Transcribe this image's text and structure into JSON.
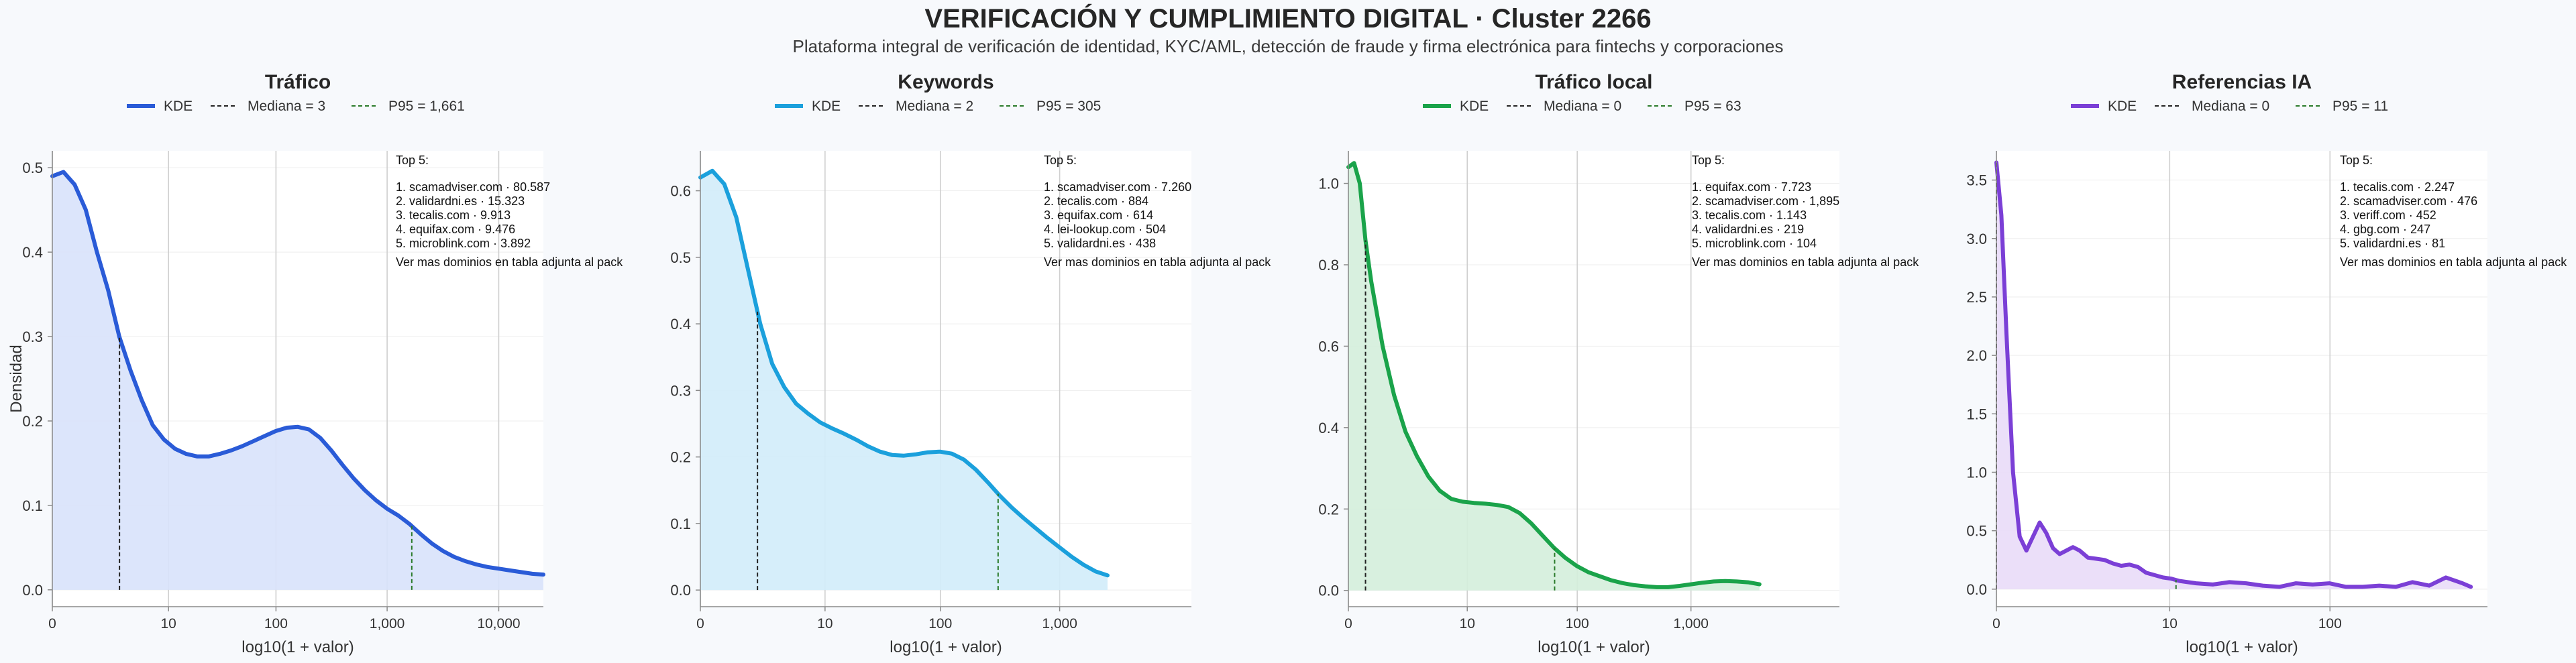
{
  "title": "VERIFICACIÓN Y CUMPLIMIENTO DIGITAL · Cluster 2266",
  "subtitle": "Plataforma integral de verificación de identidad, KYC/AML, detección de fraude y firma electrónica para fintechs y corporaciones",
  "chart_data": [
    {
      "type": "area",
      "title": "Tráfico",
      "xlabel": "log10(1 + valor)",
      "ylabel": "Densidad",
      "color": "#2a5bd7",
      "fill": "#d8e2fb",
      "xlim": [
        0,
        4.4
      ],
      "ylim": [
        -0.02,
        0.52
      ],
      "yticks": [
        0.0,
        0.1,
        0.2,
        0.3,
        0.4,
        0.5
      ],
      "ytick_labels": [
        "0.0",
        "0.1",
        "0.2",
        "0.3",
        "0.4",
        "0.5"
      ],
      "xticks": [
        0,
        1.041,
        2.004,
        3.0,
        4.0
      ],
      "xtick_labels": [
        "0",
        "10",
        "100",
        "1,000",
        "10,000"
      ],
      "legend": {
        "kde": "KDE",
        "median": "Mediana = 3",
        "p95": "P95 = 1,661"
      },
      "median_x": 0.602,
      "p95_x": 3.221,
      "top5": {
        "heading": "Top 5:",
        "items": [
          "1. scamadviser.com · 80.587",
          "2. validardni.es · 15.323",
          "3. tecalis.com · 9.913",
          "4. equifax.com · 9.476",
          "5. microblink.com · 3.892"
        ],
        "footer": "Ver mas dominios en tabla adjunta al pack"
      },
      "x": [
        0,
        0.1,
        0.2,
        0.3,
        0.4,
        0.5,
        0.6,
        0.7,
        0.8,
        0.9,
        1.0,
        1.1,
        1.2,
        1.3,
        1.4,
        1.5,
        1.6,
        1.7,
        1.8,
        1.9,
        2.0,
        2.1,
        2.2,
        2.3,
        2.4,
        2.5,
        2.6,
        2.7,
        2.8,
        2.9,
        3.0,
        3.1,
        3.2,
        3.3,
        3.4,
        3.5,
        3.6,
        3.7,
        3.8,
        3.9,
        4.0,
        4.1,
        4.2,
        4.3,
        4.4
      ],
      "y": [
        0.49,
        0.495,
        0.48,
        0.45,
        0.4,
        0.355,
        0.3,
        0.26,
        0.225,
        0.195,
        0.178,
        0.167,
        0.161,
        0.158,
        0.158,
        0.161,
        0.165,
        0.17,
        0.176,
        0.182,
        0.188,
        0.192,
        0.193,
        0.19,
        0.18,
        0.165,
        0.148,
        0.132,
        0.118,
        0.106,
        0.096,
        0.088,
        0.078,
        0.066,
        0.055,
        0.046,
        0.039,
        0.034,
        0.03,
        0.027,
        0.025,
        0.023,
        0.021,
        0.019,
        0.018
      ]
    },
    {
      "type": "area",
      "title": "Keywords",
      "xlabel": "log10(1 + valor)",
      "ylabel": "",
      "color": "#1ba0dc",
      "fill": "#d2ecfa",
      "xlim": [
        0,
        4.1
      ],
      "ylim": [
        -0.025,
        0.66
      ],
      "yticks": [
        0.0,
        0.1,
        0.2,
        0.3,
        0.4,
        0.5,
        0.6
      ],
      "ytick_labels": [
        "0.0",
        "0.1",
        "0.2",
        "0.3",
        "0.4",
        "0.5",
        "0.6"
      ],
      "xticks": [
        0,
        1.041,
        2.004,
        3.0
      ],
      "xtick_labels": [
        "0",
        "10",
        "100",
        "1,000"
      ],
      "legend": {
        "kde": "KDE",
        "median": "Mediana = 2",
        "p95": "P95 = 305"
      },
      "median_x": 0.477,
      "p95_x": 2.486,
      "top5": {
        "heading": "Top 5:",
        "items": [
          "1. scamadviser.com · 7.260",
          "2. tecalis.com · 884",
          "3. equifax.com · 614",
          "4. lei-lookup.com · 504",
          "5. validardni.es · 438"
        ],
        "footer": "Ver mas dominios en tabla adjunta al pack"
      },
      "x": [
        0,
        0.1,
        0.2,
        0.3,
        0.4,
        0.5,
        0.6,
        0.7,
        0.8,
        0.9,
        1.0,
        1.1,
        1.2,
        1.3,
        1.4,
        1.5,
        1.6,
        1.7,
        1.8,
        1.9,
        2.0,
        2.1,
        2.2,
        2.3,
        2.4,
        2.5,
        2.6,
        2.7,
        2.8,
        2.9,
        3.0,
        3.1,
        3.2,
        3.3,
        3.4
      ],
      "y": [
        0.62,
        0.63,
        0.61,
        0.56,
        0.48,
        0.4,
        0.34,
        0.305,
        0.28,
        0.265,
        0.252,
        0.243,
        0.235,
        0.226,
        0.216,
        0.208,
        0.203,
        0.202,
        0.204,
        0.207,
        0.208,
        0.205,
        0.196,
        0.181,
        0.162,
        0.142,
        0.124,
        0.108,
        0.093,
        0.078,
        0.064,
        0.05,
        0.038,
        0.028,
        0.022
      ]
    },
    {
      "type": "area",
      "title": "Tráfico local",
      "xlabel": "log10(1 + valor)",
      "ylabel": "",
      "color": "#1aa34a",
      "fill": "#d4eedb",
      "xlim": [
        0,
        4.3
      ],
      "ylim": [
        -0.04,
        1.08
      ],
      "yticks": [
        0.0,
        0.2,
        0.4,
        0.6,
        0.8,
        1.0
      ],
      "ytick_labels": [
        "0.0",
        "0.2",
        "0.4",
        "0.6",
        "0.8",
        "1.0"
      ],
      "xticks": [
        0,
        1.041,
        2.004,
        3.0
      ],
      "xtick_labels": [
        "0",
        "10",
        "100",
        "1,000"
      ],
      "legend": {
        "kde": "KDE",
        "median": "Mediana = 0",
        "p95": "P95 = 63"
      },
      "median_x": 0.15,
      "p95_x": 1.806,
      "top5": {
        "heading": "Top 5:",
        "items": [
          "1. equifax.com · 7.723",
          "2. scamadviser.com · 1,895",
          "3. tecalis.com · 1.143",
          "4. validardni.es · 219",
          "5. microblink.com · 104"
        ],
        "footer": "Ver mas dominios en tabla adjunta al pack"
      },
      "x": [
        0,
        0.05,
        0.1,
        0.15,
        0.2,
        0.3,
        0.4,
        0.5,
        0.6,
        0.7,
        0.8,
        0.9,
        1.0,
        1.1,
        1.2,
        1.3,
        1.4,
        1.5,
        1.6,
        1.7,
        1.8,
        1.9,
        2.0,
        2.1,
        2.2,
        2.3,
        2.4,
        2.5,
        2.6,
        2.7,
        2.8,
        2.9,
        3.0,
        3.1,
        3.2,
        3.3,
        3.4,
        3.5,
        3.6
      ],
      "y": [
        1.04,
        1.05,
        1.0,
        0.86,
        0.76,
        0.6,
        0.48,
        0.39,
        0.33,
        0.28,
        0.245,
        0.225,
        0.218,
        0.215,
        0.213,
        0.21,
        0.205,
        0.19,
        0.165,
        0.135,
        0.105,
        0.08,
        0.06,
        0.045,
        0.035,
        0.025,
        0.018,
        0.013,
        0.01,
        0.008,
        0.008,
        0.011,
        0.015,
        0.019,
        0.022,
        0.023,
        0.022,
        0.02,
        0.015
      ]
    },
    {
      "type": "area",
      "title": "Referencias IA",
      "xlabel": "log10(1 + valor)",
      "ylabel": "",
      "color": "#7b3fd6",
      "fill": "#e9dcf8",
      "xlim": [
        0,
        2.95
      ],
      "ylim": [
        -0.15,
        3.75
      ],
      "yticks": [
        0.0,
        0.5,
        1.0,
        1.5,
        2.0,
        2.5,
        3.0,
        3.5
      ],
      "ytick_labels": [
        "0.0",
        "0.5",
        "1.0",
        "1.5",
        "2.0",
        "2.5",
        "3.0",
        "3.5"
      ],
      "xticks": [
        0,
        1.041,
        2.004
      ],
      "xtick_labels": [
        "0",
        "10",
        "100"
      ],
      "legend": {
        "kde": "KDE",
        "median": "Mediana = 0",
        "p95": "P95 = 11"
      },
      "median_x": 0.0,
      "p95_x": 1.079,
      "top5": {
        "heading": "Top 5:",
        "items": [
          "1. tecalis.com · 2.247",
          "2. scamadviser.com · 476",
          "3. veriff.com · 452",
          "4. gbg.com · 247",
          "5. validardni.es · 81"
        ],
        "footer": "Ver mas dominios en tabla adjunta al pack"
      },
      "x": [
        0,
        0.03,
        0.06,
        0.1,
        0.14,
        0.18,
        0.22,
        0.26,
        0.3,
        0.34,
        0.38,
        0.42,
        0.46,
        0.5,
        0.55,
        0.6,
        0.65,
        0.7,
        0.75,
        0.8,
        0.85,
        0.9,
        0.95,
        1.0,
        1.05,
        1.1,
        1.2,
        1.3,
        1.4,
        1.5,
        1.6,
        1.7,
        1.8,
        1.9,
        2.0,
        2.1,
        2.2,
        2.3,
        2.4,
        2.5,
        2.6,
        2.7,
        2.8,
        2.85
      ],
      "y": [
        3.65,
        3.2,
        2.2,
        1.0,
        0.45,
        0.33,
        0.45,
        0.57,
        0.48,
        0.35,
        0.3,
        0.33,
        0.36,
        0.33,
        0.27,
        0.26,
        0.25,
        0.22,
        0.2,
        0.21,
        0.19,
        0.14,
        0.12,
        0.1,
        0.09,
        0.07,
        0.05,
        0.04,
        0.06,
        0.05,
        0.03,
        0.02,
        0.05,
        0.04,
        0.05,
        0.02,
        0.02,
        0.03,
        0.02,
        0.06,
        0.03,
        0.1,
        0.05,
        0.02
      ]
    }
  ]
}
